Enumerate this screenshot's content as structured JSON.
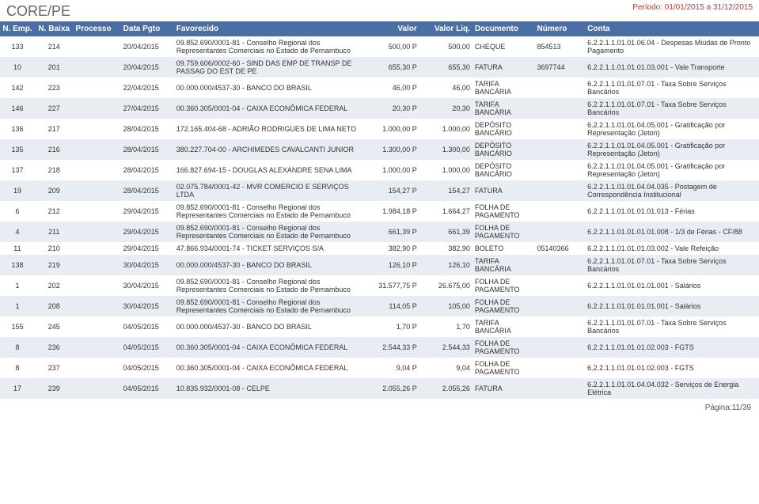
{
  "header": {
    "title": "CORE/PE",
    "period": "Período: 01/01/2015 a 31/12/2015"
  },
  "columns": [
    "N. Emp.",
    "N. Baixa",
    "Processo",
    "Data Pgto",
    "Favorecido",
    "Valor",
    "Valor Liq.",
    "Documento",
    "Número",
    "Conta"
  ],
  "rows": [
    {
      "nemp": "133",
      "nbaixa": "214",
      "proc": "",
      "data": "20/04/2015",
      "fav": "09.852.690/0001-81 - Conselho Regional dos Representantes Comerciais no Estado de Pernambuco",
      "valor": "500,00 P",
      "valorliq": "500,00",
      "doc": "CHEQUE",
      "num": "854513",
      "conta": "6.2.2.1.1.01.01.06.04 - Despesas Miúdas de Pronto Pagamento"
    },
    {
      "nemp": "10",
      "nbaixa": "201",
      "proc": "",
      "data": "20/04/2015",
      "fav": "09.759.606/0002-60 - SIND DAS EMP DE TRANSP DE PASSAG DO EST DE PE",
      "valor": "655,30 P",
      "valorliq": "655,30",
      "doc": "FATURA",
      "num": "3697744",
      "conta": "6.2.2.1.1.01.01.01.03.001 - Vale Transporte"
    },
    {
      "nemp": "142",
      "nbaixa": "223",
      "proc": "",
      "data": "22/04/2015",
      "fav": "00.000.000/4537-30 - BANCO DO BRASIL",
      "valor": "46,00 P",
      "valorliq": "46,00",
      "doc": "TARIFA BANCÁRIA",
      "num": "",
      "conta": "6.2.2.1.1.01.01.07.01 - Taxa Sobre Serviços Bancários"
    },
    {
      "nemp": "146",
      "nbaixa": "227",
      "proc": "",
      "data": "27/04/2015",
      "fav": "00.360.305/0001-04 - CAIXA ECONÔMICA FEDERAL",
      "valor": "20,30 P",
      "valorliq": "20,30",
      "doc": "TARIFA BANCÁRIA",
      "num": "",
      "conta": "6.2.2.1.1.01.01.07.01 - Taxa Sobre Serviços Bancários"
    },
    {
      "nemp": "136",
      "nbaixa": "217",
      "proc": "",
      "data": "28/04/2015",
      "fav": "172.165.404-68 - ADRIÃO RODRIGUES DE LIMA NETO",
      "valor": "1.000,00 P",
      "valorliq": "1.000,00",
      "doc": "DEPÓSITO BANCÁRIO",
      "num": "",
      "conta": "6.2.2.1.1.01.01.04.05.001 - Gratificação por Representação (Jeton)"
    },
    {
      "nemp": "135",
      "nbaixa": "216",
      "proc": "",
      "data": "28/04/2015",
      "fav": "380.227.704-00 - ARCHIMEDES CAVALCANTI JUNIOR",
      "valor": "1.300,00 P",
      "valorliq": "1.300,00",
      "doc": "DEPÓSITO BANCÁRIO",
      "num": "",
      "conta": "6.2.2.1.1.01.01.04.05.001 - Gratificação por Representação (Jeton)"
    },
    {
      "nemp": "137",
      "nbaixa": "218",
      "proc": "",
      "data": "28/04/2015",
      "fav": "166.827.694-15 - DOUGLAS ALEXANDRE SENA LIMA",
      "valor": "1.000,00 P",
      "valorliq": "1.000,00",
      "doc": "DEPÓSITO BANCÁRIO",
      "num": "",
      "conta": "6.2.2.1.1.01.01.04.05.001 - Gratificação por Representação (Jeton)"
    },
    {
      "nemp": "19",
      "nbaixa": "209",
      "proc": "",
      "data": "28/04/2015",
      "fav": "02.075.784/0001-42 - MVR COMERCIO E SERVIÇOS LTDA",
      "valor": "154,27 P",
      "valorliq": "154,27",
      "doc": "FATURA",
      "num": "",
      "conta": "6.2.2.1.1.01.01.04.04.035 - Postagem de Correspondência Institucional"
    },
    {
      "nemp": "6",
      "nbaixa": "212",
      "proc": "",
      "data": "29/04/2015",
      "fav": "09.852.690/0001-81 - Conselho Regional dos Representantes Comerciais no Estado de Pernambuco",
      "valor": "1.984,18 P",
      "valorliq": "1.664,27",
      "doc": "FOLHA DE PAGAMENTO",
      "num": "",
      "conta": "6.2.2.1.1.01.01.01.01.013 - Férias"
    },
    {
      "nemp": "4",
      "nbaixa": "211",
      "proc": "",
      "data": "29/04/2015",
      "fav": "09.852.690/0001-81 - Conselho Regional dos Representantes Comerciais no Estado de Pernambuco",
      "valor": "661,39 P",
      "valorliq": "661,39",
      "doc": "FOLHA DE PAGAMENTO",
      "num": "",
      "conta": "6.2.2.1.1.01.01.01.01.008 - 1/3 de Férias - CF/88"
    },
    {
      "nemp": "11",
      "nbaixa": "210",
      "proc": "",
      "data": "29/04/2015",
      "fav": "47.866.934/0001-74 - TICKET SERVIÇOS S/A",
      "valor": "382,90 P",
      "valorliq": "382,90",
      "doc": "BOLETO",
      "num": "05140366",
      "conta": "6.2.2.1.1.01.01.01.03.002 - Vale Refeição"
    },
    {
      "nemp": "138",
      "nbaixa": "219",
      "proc": "",
      "data": "30/04/2015",
      "fav": "00.000.000/4537-30 - BANCO DO BRASIL",
      "valor": "126,10 P",
      "valorliq": "126,10",
      "doc": "TARIFA BANCÁRIA",
      "num": "",
      "conta": "6.2.2.1.1.01.01.07.01 - Taxa Sobre Serviços Bancários"
    },
    {
      "nemp": "1",
      "nbaixa": "202",
      "proc": "",
      "data": "30/04/2015",
      "fav": "09.852.690/0001-81 - Conselho Regional dos Representantes Comerciais no Estado de Pernambuco",
      "valor": "31.577,75 P",
      "valorliq": "26.675,00",
      "doc": "FOLHA DE PAGAMENTO",
      "num": "",
      "conta": "6.2.2.1.1.01.01.01.01.001 - Salários"
    },
    {
      "nemp": "1",
      "nbaixa": "208",
      "proc": "",
      "data": "30/04/2015",
      "fav": "09.852.690/0001-81 - Conselho Regional dos Representantes Comerciais no Estado de Pernambuco",
      "valor": "114,05 P",
      "valorliq": "105,00",
      "doc": "FOLHA DE PAGAMENTO",
      "num": "",
      "conta": "6.2.2.1.1.01.01.01.01.001 - Salários"
    },
    {
      "nemp": "155",
      "nbaixa": "245",
      "proc": "",
      "data": "04/05/2015",
      "fav": "00.000.000/4537-30 - BANCO DO BRASIL",
      "valor": "1,70 P",
      "valorliq": "1,70",
      "doc": "TARIFA BANCÁRIA",
      "num": "",
      "conta": "6.2.2.1.1.01.01.07.01 - Taxa Sobre Serviços Bancários"
    },
    {
      "nemp": "8",
      "nbaixa": "236",
      "proc": "",
      "data": "04/05/2015",
      "fav": "00.360.305/0001-04 - CAIXA ECONÔMICA FEDERAL",
      "valor": "2.544,33 P",
      "valorliq": "2.544,33",
      "doc": "FOLHA DE PAGAMENTO",
      "num": "",
      "conta": "6.2.2.1.1.01.01.01.02.003 - FGTS"
    },
    {
      "nemp": "8",
      "nbaixa": "237",
      "proc": "",
      "data": "04/05/2015",
      "fav": "00.360.305/0001-04 - CAIXA ECONÔMICA FEDERAL",
      "valor": "9,04 P",
      "valorliq": "9,04",
      "doc": "FOLHA DE PAGAMENTO",
      "num": "",
      "conta": "6.2.2.1.1.01.01.01.02.003 - FGTS"
    },
    {
      "nemp": "17",
      "nbaixa": "239",
      "proc": "",
      "data": "04/05/2015",
      "fav": "10.835.932/0001-08 - CELPE",
      "valor": "2.055,26 P",
      "valorliq": "2.055,26",
      "doc": "FATURA",
      "num": "",
      "conta": "6.2.2.1.1.01.01.04.04.032 - Serviços de Energia Elétrica"
    }
  ],
  "footer": {
    "page": "Página:11/39"
  },
  "theme": {
    "header_bg": "#4a6fa5",
    "header_fg": "#ffffff",
    "alt_row_bg": "#e8edf3",
    "title_color": "#666666",
    "period_color": "#cc3333"
  }
}
